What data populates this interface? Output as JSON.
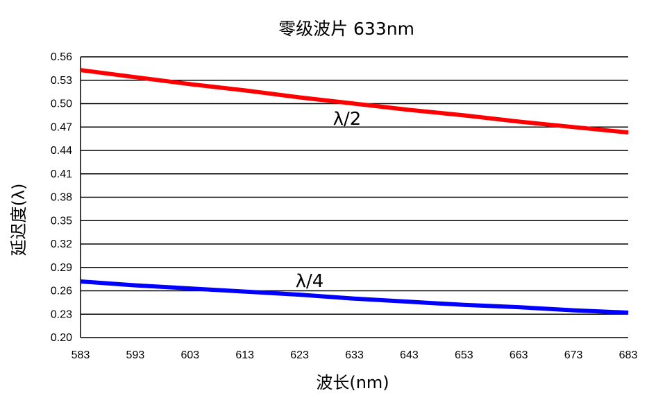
{
  "chart_data": {
    "type": "line",
    "title": "零级波片 633nm",
    "xlabel": "波长(nm)",
    "ylabel": "延迟度(λ)",
    "xlim": [
      583,
      683
    ],
    "ylim": [
      0.2,
      0.56
    ],
    "x_ticks": [
      "583",
      "593",
      "603",
      "613",
      "623",
      "633",
      "643",
      "653",
      "663",
      "673",
      "683"
    ],
    "y_ticks": [
      "0.20",
      "0.23",
      "0.26",
      "0.29",
      "0.32",
      "0.35",
      "0.38",
      "0.41",
      "0.44",
      "0.47",
      "0.50",
      "0.53",
      "0.56"
    ],
    "grid": "horizontal",
    "x": [
      583,
      593,
      603,
      613,
      623,
      633,
      643,
      653,
      663,
      673,
      683
    ],
    "series": [
      {
        "label": "λ/2",
        "color": "#ff0000",
        "values": [
          0.543,
          0.534,
          0.525,
          0.517,
          0.508,
          0.5,
          0.492,
          0.485,
          0.477,
          0.47,
          0.463
        ]
      },
      {
        "label": "λ/4",
        "color": "#0000ff",
        "values": [
          0.272,
          0.267,
          0.263,
          0.259,
          0.255,
          0.25,
          0.246,
          0.242,
          0.239,
          0.235,
          0.232
        ]
      }
    ]
  }
}
